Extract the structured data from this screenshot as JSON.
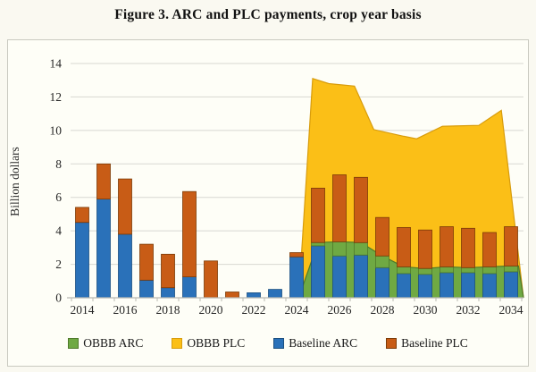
{
  "figure": {
    "title": "Figure 3. ARC and PLC payments, crop year basis"
  },
  "axis": {
    "y_label": "Billion dollars",
    "y_ticks": [
      0,
      2,
      4,
      6,
      8,
      10,
      12,
      14
    ],
    "x_tick_labels": [
      2014,
      2016,
      2018,
      2020,
      2022,
      2024,
      2026,
      2028,
      2030,
      2032,
      2034
    ]
  },
  "legend": {
    "items": [
      {
        "label": "OBBB ARC",
        "color": "#6FA943",
        "border": "#4F7A2B"
      },
      {
        "label": "OBBB PLC",
        "color": "#FBBF17",
        "border": "#D89C0C"
      },
      {
        "label": "Baseline ARC",
        "color": "#2A71B9",
        "border": "#1B4F80"
      },
      {
        "label": "Baseline PLC",
        "color": "#C85C16",
        "border": "#7C3B07"
      }
    ]
  },
  "chart_data": {
    "type": "bar",
    "subtype": "stacked bars (Baseline ARC + Baseline PLC) combined with stacked areas (OBBB ARC + OBBB PLC)",
    "title": "Figure 3. ARC and PLC payments, crop year basis",
    "xlabel": "",
    "ylabel": "Billion dollars",
    "ylim": [
      0,
      14
    ],
    "grid": "horizontal, every 2 units",
    "legend_position": "bottom",
    "years": [
      2014,
      2015,
      2016,
      2017,
      2018,
      2019,
      2020,
      2021,
      2022,
      2023,
      2024,
      2025,
      2026,
      2027,
      2028,
      2029,
      2030,
      2031,
      2032,
      2033,
      2034
    ],
    "series": [
      {
        "name": "Baseline ARC",
        "type": "bar",
        "color": "#2A71B9",
        "border": "#1B4F80",
        "values": [
          4.5,
          5.9,
          3.8,
          1.05,
          0.6,
          1.25,
          0,
          0,
          0.3,
          0.5,
          2.45,
          3.1,
          2.5,
          2.55,
          1.8,
          1.45,
          1.4,
          1.5,
          1.5,
          1.45,
          1.55
        ]
      },
      {
        "name": "Baseline PLC",
        "type": "bar",
        "stacked_on": "Baseline ARC",
        "color": "#C85C16",
        "border": "#7C3B07",
        "values": [
          0.9,
          2.1,
          3.3,
          2.15,
          2.0,
          5.1,
          2.2,
          0.35,
          0,
          0,
          0.25,
          3.45,
          4.85,
          4.65,
          3.0,
          2.75,
          2.65,
          2.75,
          2.65,
          2.45,
          2.7
        ]
      },
      {
        "name": "OBBB ARC",
        "type": "area",
        "color": "#6FA943",
        "border": "#4F7A2B",
        "note": "area level (billion $); zero before 2024",
        "points": [
          [
            2024.1,
            0
          ],
          [
            2025,
            3.3
          ],
          [
            2026,
            3.35
          ],
          [
            2027,
            3.3
          ],
          [
            2028,
            2.5
          ],
          [
            2029,
            1.85
          ],
          [
            2030,
            1.75
          ],
          [
            2031,
            1.85
          ],
          [
            2032,
            1.8
          ],
          [
            2033,
            1.85
          ],
          [
            2034,
            1.9
          ],
          [
            2034.35,
            1.9
          ],
          [
            2034.6,
            0
          ]
        ]
      },
      {
        "name": "OBBB PLC",
        "type": "area",
        "stacked_on": "OBBB ARC",
        "color": "#FBBF17",
        "border": "#D89C0C",
        "note": "points are cumulative tops (OBBB ARC + OBBB PLC); zero before 2024",
        "points_total": [
          [
            2024.1,
            0
          ],
          [
            2024.75,
            13.1
          ],
          [
            2025.5,
            12.8
          ],
          [
            2026.7,
            12.65
          ],
          [
            2027.6,
            10.05
          ],
          [
            2029,
            9.65
          ],
          [
            2029.6,
            9.5
          ],
          [
            2030.8,
            10.25
          ],
          [
            2032.5,
            10.3
          ],
          [
            2033.55,
            11.2
          ],
          [
            2034.6,
            0
          ]
        ]
      }
    ]
  }
}
